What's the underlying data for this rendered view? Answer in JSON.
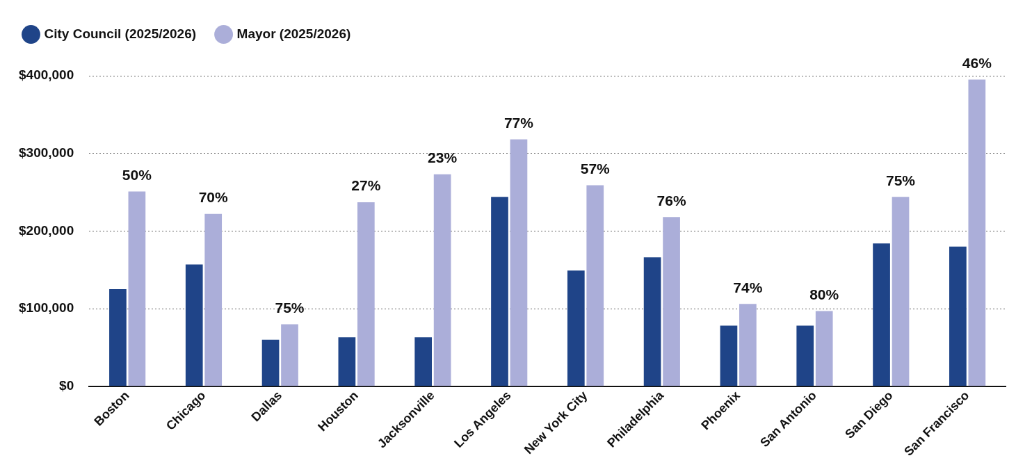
{
  "chart_data": {
    "type": "bar",
    "categories": [
      "Boston",
      "Chicago",
      "Dallas",
      "Houston",
      "Jacksonville",
      "Los Angeles",
      "New York City",
      "Philadelphia",
      "Phoenix",
      "San Antonio",
      "San Diego",
      "San Francisco"
    ],
    "series": [
      {
        "name": "City Council (2025/2026)",
        "color": "#1f4488",
        "values": [
          125000,
          157000,
          60000,
          63000,
          63000,
          244000,
          149000,
          166000,
          78000,
          78000,
          184000,
          180000
        ]
      },
      {
        "name": "Mayor (2025/2026)",
        "color": "#abaed9",
        "values": [
          251000,
          222000,
          80000,
          237000,
          273000,
          318000,
          259000,
          218000,
          106000,
          97000,
          244000,
          395000
        ]
      }
    ],
    "annotations": [
      {
        "text": "50%",
        "x": "Boston",
        "y": 251000
      },
      {
        "text": "70%",
        "x": "Chicago",
        "y": 222000
      },
      {
        "text": "75%",
        "x": "Dallas",
        "y": 80000
      },
      {
        "text": "27%",
        "x": "Houston",
        "y": 237000
      },
      {
        "text": "23%",
        "x": "Jacksonville",
        "y": 273000
      },
      {
        "text": "77%",
        "x": "Los Angeles",
        "y": 318000
      },
      {
        "text": "57%",
        "x": "New York City",
        "y": 259000
      },
      {
        "text": "76%",
        "x": "Philadelphia",
        "y": 218000
      },
      {
        "text": "74%",
        "x": "Phoenix",
        "y": 106000
      },
      {
        "text": "80%",
        "x": "San Antonio",
        "y": 97000
      },
      {
        "text": "75%",
        "x": "San Diego",
        "y": 244000
      },
      {
        "text": "46%",
        "x": "San Francisco",
        "y": 395000
      }
    ],
    "ylim": [
      0,
      400000
    ],
    "yticks": [
      {
        "value": 0,
        "label": "$0"
      },
      {
        "value": 100000,
        "label": "$100,000"
      },
      {
        "value": 200000,
        "label": "$200,000"
      },
      {
        "value": 300000,
        "label": "$300,000"
      },
      {
        "value": 400000,
        "label": "$400,000"
      }
    ],
    "grid": "y",
    "legend": "top left"
  }
}
